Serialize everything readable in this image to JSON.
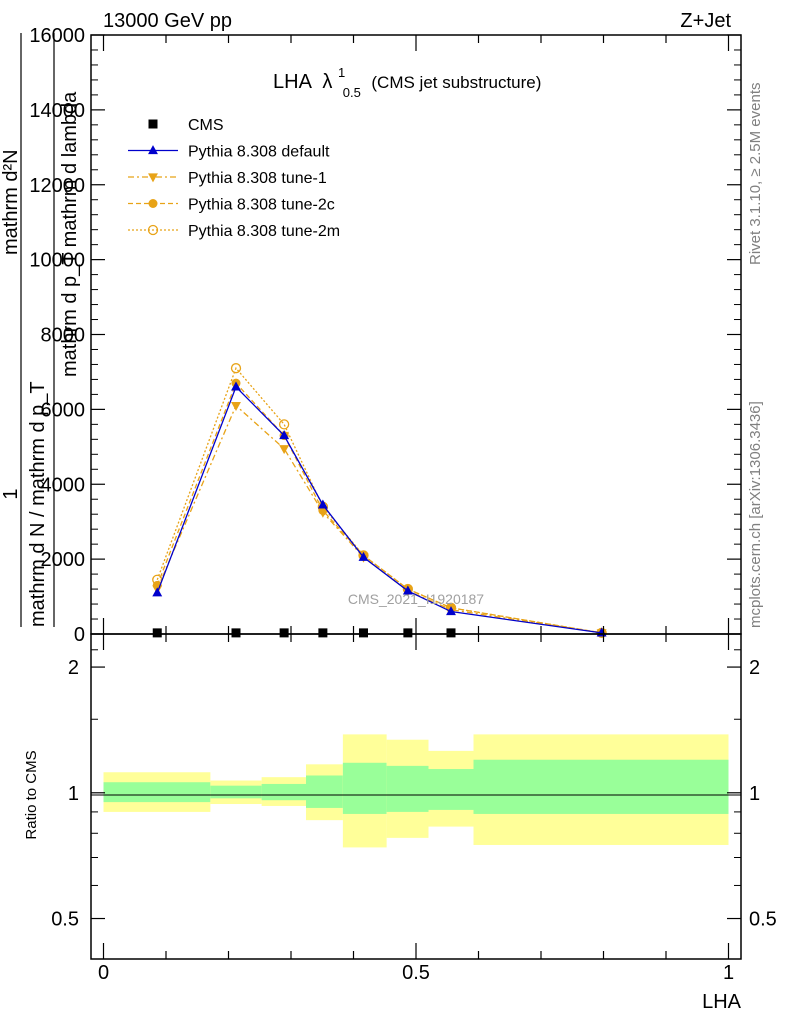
{
  "header": {
    "left": "13000 GeV pp",
    "right": "Z+Jet"
  },
  "side_text": {
    "rivet": "Rivet 3.1.10, ≥ 2.5M events",
    "mcplots": "mcplots.cern.ch [arXiv:1306.3436]"
  },
  "watermark": "CMS_2021_I1920187",
  "main_title": {
    "prefix": "LHA",
    "lambda": "λ",
    "sup": "1",
    "sub": "0.5",
    "suffix": "(CMS jet substructure)"
  },
  "ylabel": {
    "numerator": "mathrm d²N",
    "denominator": "mathrm d p_T mathrm d lambda",
    "left_top": "1",
    "left_bottom": "mathrm d N / mathrm d p_T"
  },
  "ratio_ylabel": "Ratio to CMS",
  "xlabel": "LHA",
  "colors": {
    "cms": "#000000",
    "default": "#0000cc",
    "tunes": "#e8a317",
    "green": "#99ff99",
    "yellow": "#ffff99"
  },
  "chart_data": [
    {
      "type": "line",
      "xlim": [
        -0.02,
        1.02
      ],
      "ylim": [
        0,
        16000
      ],
      "yticks": [
        0,
        2000,
        4000,
        6000,
        8000,
        10000,
        12000,
        14000,
        16000
      ],
      "ytick_labels": [
        "0",
        "2000",
        "4000",
        "6000",
        "8000",
        "10000",
        "12000",
        "14000",
        "16000"
      ],
      "x": [
        0.086,
        0.212,
        0.289,
        0.351,
        0.416,
        0.487,
        0.556,
        0.797
      ],
      "series": [
        {
          "name": "CMS",
          "marker": "square",
          "values": [
            30,
            30,
            30,
            30,
            30,
            30,
            30,
            0
          ]
        },
        {
          "name": "Pythia 8.308 default",
          "marker": "triangle-up",
          "values": [
            1100,
            6600,
            5300,
            3450,
            2050,
            1150,
            600,
            30
          ]
        },
        {
          "name": "Pythia 8.308 tune-1",
          "marker": "triangle-down",
          "values": [
            1200,
            6100,
            4950,
            3250,
            2050,
            1150,
            650,
            30
          ]
        },
        {
          "name": "Pythia 8.308 tune-2c",
          "marker": "circle-filled",
          "values": [
            1300,
            6700,
            5300,
            3300,
            2100,
            1200,
            700,
            30
          ]
        },
        {
          "name": "Pythia 8.308 tune-2m",
          "marker": "circle-open",
          "values": [
            1450,
            7100,
            5600,
            3400,
            2100,
            1200,
            700,
            30
          ]
        }
      ]
    },
    {
      "type": "area",
      "ylabel": "Ratio to CMS",
      "xlabel": "LHA",
      "xlim": [
        -0.02,
        1.02
      ],
      "ylim": [
        0.4,
        2.4
      ],
      "ylog": true,
      "yticks": [
        0.5,
        1,
        2
      ],
      "ytick_labels": [
        "0.5",
        "1",
        "2"
      ],
      "xticks": [
        0,
        0.5,
        1
      ],
      "xtick_labels": [
        "0",
        "0.5",
        "1"
      ],
      "bins": [
        {
          "lo": 0.0,
          "hi": 0.171,
          "green": [
            0.95,
            1.06
          ],
          "yellow": [
            0.9,
            1.12
          ]
        },
        {
          "lo": 0.171,
          "hi": 0.253,
          "green": [
            0.97,
            1.04
          ],
          "yellow": [
            0.94,
            1.07
          ]
        },
        {
          "lo": 0.253,
          "hi": 0.324,
          "green": [
            0.96,
            1.05
          ],
          "yellow": [
            0.93,
            1.09
          ]
        },
        {
          "lo": 0.324,
          "hi": 0.383,
          "green": [
            0.92,
            1.1
          ],
          "yellow": [
            0.86,
            1.17
          ]
        },
        {
          "lo": 0.383,
          "hi": 0.453,
          "green": [
            0.89,
            1.18
          ],
          "yellow": [
            0.74,
            1.38
          ]
        },
        {
          "lo": 0.453,
          "hi": 0.52,
          "green": [
            0.9,
            1.16
          ],
          "yellow": [
            0.78,
            1.34
          ]
        },
        {
          "lo": 0.52,
          "hi": 0.592,
          "green": [
            0.91,
            1.14
          ],
          "yellow": [
            0.83,
            1.26
          ]
        },
        {
          "lo": 0.592,
          "hi": 1.0,
          "green": [
            0.89,
            1.2
          ],
          "yellow": [
            0.75,
            1.38
          ]
        }
      ]
    }
  ]
}
